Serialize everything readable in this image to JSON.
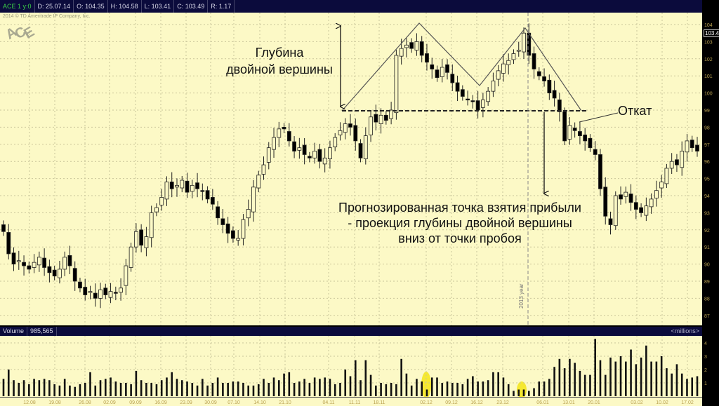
{
  "header": {
    "symbol": "ACE 1 y:0",
    "date": "D: 25.07.14",
    "open": "O: 104.35",
    "high": "H: 104.58",
    "low": "L: 103.41",
    "close": "C: 103.49",
    "range": "R: 1.17"
  },
  "copyright": "2014 © TD Ameritrade IP Company, Inc.",
  "logo": "ACE",
  "last_price": "103.49",
  "year_marker": "2013 year",
  "annotations": {
    "depth_line1": "Глубина",
    "depth_line2": "двойной вершины",
    "pullback": "Откат",
    "target_line1": "Прогнозированная точка взятия прибыли",
    "target_line2": "- проекция глубины двойной вершины",
    "target_line3": "вниз от точки пробоя"
  },
  "volume": {
    "label": "Volume",
    "value": "985,565",
    "unit": "<millions>"
  },
  "colors": {
    "background": "#fcf9c6",
    "header": "#0b0b3c",
    "up_candle": "#fcf9c6",
    "down_candle": "#000000",
    "highlight": "#f5e830",
    "axis_text": "#b8a050"
  },
  "chart_data": {
    "type": "candlestick",
    "price_axis": {
      "ticks": [
        87,
        88,
        89,
        90,
        91,
        92,
        93,
        94,
        95,
        96,
        97,
        98,
        99,
        100,
        101,
        102,
        103,
        104
      ],
      "range": [
        86.5,
        105
      ]
    },
    "volume_axis": {
      "ticks": [
        1,
        2,
        3,
        4
      ],
      "unit": "millions"
    },
    "date_ticks": [
      "12.08",
      "19.08",
      "26.08",
      "02.09",
      "09.09",
      "16.09",
      "23.09",
      "30.09",
      "07.10",
      "14.10",
      "21.10",
      "04.11",
      "11.11",
      "18.11",
      "02.12",
      "09.12",
      "16.12",
      "23.12",
      "06.01",
      "13.01",
      "20.01",
      "03.02",
      "10.02",
      "17.02"
    ],
    "close": [
      91.9,
      90.6,
      90.0,
      90.2,
      89.9,
      89.7,
      90.1,
      90.4,
      89.8,
      89.5,
      89.3,
      89.7,
      90.4,
      89.9,
      89.0,
      88.6,
      88.2,
      88.4,
      88.0,
      88.5,
      88.2,
      88.4,
      88.3,
      88.6,
      89.9,
      91.0,
      91.9,
      91.1,
      91.6,
      93.0,
      93.3,
      93.9,
      94.8,
      94.4,
      94.6,
      94.9,
      94.2,
      94.6,
      94.4,
      94.3,
      93.8,
      93.5,
      92.7,
      92.3,
      91.8,
      91.5,
      91.5,
      92.6,
      93.2,
      94.5,
      95.2,
      95.8,
      96.8,
      97.4,
      97.9,
      97.9,
      97.2,
      96.6,
      96.8,
      96.4,
      96.2,
      96.6,
      96.0,
      96.2,
      96.8,
      97.4,
      97.8,
      98.2,
      98.0,
      97.2,
      96.2,
      97.5,
      98.6,
      98.3,
      98.7,
      98.4,
      99.0,
      102.2,
      102.6,
      102.8,
      102.6,
      103.0,
      102.2,
      101.8,
      101.4,
      100.9,
      101.5,
      101.2,
      100.6,
      100.1,
      99.8,
      99.6,
      99.5,
      99.0,
      99.6,
      100.1,
      100.7,
      101.3,
      101.7,
      101.9,
      102.3,
      102.5,
      103.5,
      102.2,
      101.4,
      101.0,
      100.7,
      100.0,
      99.7,
      98.9,
      97.2,
      98.1,
      97.8,
      97.5,
      97.2,
      96.8,
      96.4,
      94.4,
      92.8,
      92.3,
      94.0,
      93.8,
      94.2,
      93.6,
      93.2,
      93.0,
      93.4,
      93.8,
      94.3,
      94.8,
      95.6,
      96.0,
      95.8,
      96.6,
      97.2,
      96.8,
      96.6
    ],
    "volume": [
      1.3,
      2.0,
      1.2,
      1.0,
      1.2,
      0.9,
      1.3,
      1.2,
      1.3,
      1.2,
      0.9,
      0.8,
      1.3,
      0.8,
      0.7,
      0.9,
      1.0,
      1.8,
      0.8,
      1.2,
      1.3,
      1.4,
      1.1,
      1.0,
      1.0,
      0.9,
      1.9,
      1.2,
      1.0,
      1.0,
      0.9,
      1.2,
      1.4,
      1.8,
      1.3,
      1.2,
      1.1,
      1.0,
      0.8,
      1.3,
      0.8,
      1.0,
      1.4,
      1.0,
      1.0,
      1.1,
      1.1,
      1.0,
      0.8,
      0.8,
      0.9,
      1.3,
      1.0,
      1.4,
      1.2,
      1.7,
      1.8,
      1.0,
      1.1,
      1.3,
      1.0,
      1.4,
      1.3,
      1.4,
      1.3,
      0.9,
      1.0,
      2.0,
      1.5,
      2.7,
      1.2,
      2.7,
      1.6,
      0.8,
      1.0,
      0.9,
      1.0,
      0.9,
      2.8,
      1.7,
      0.8,
      1.3,
      1.1,
      0.5,
      1.4,
      1.4,
      1.0,
      1.1,
      1.0,
      1.0,
      0.9,
      1.3,
      1.5,
      1.1,
      1.1,
      1.2,
      1.8,
      1.8,
      1.4,
      0.9,
      0.4,
      0.5,
      0.5,
      0.4,
      0.6,
      1.1,
      1.1,
      1.3,
      2.2,
      2.8,
      2.1,
      2.8,
      2.5,
      1.9,
      1.6,
      1.6,
      4.3,
      2.7,
      1.6,
      2.9,
      2.6,
      3.0,
      2.6,
      3.5,
      2.4,
      2.9,
      3.8,
      2.6,
      2.6,
      3.0,
      2.1,
      1.7,
      2.4,
      1.7,
      1.3,
      1.4,
      1.5
    ]
  }
}
